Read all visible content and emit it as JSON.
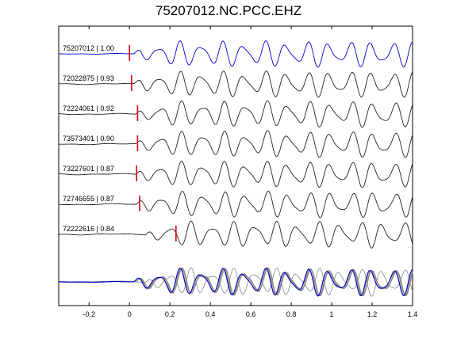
{
  "chart_data": {
    "type": "line",
    "title": "75207012.NC.PCC.EHZ",
    "xlabel": "",
    "ylabel": "",
    "xlim": [
      -0.35,
      1.4
    ],
    "xticks": [
      -0.2,
      0,
      0.2,
      0.4,
      0.6,
      0.8,
      1,
      1.2,
      1.4
    ],
    "xtick_labels": [
      "-0.2",
      "0",
      "0.2",
      "0.4",
      "0.6",
      "0.8",
      "1",
      "1.2",
      "1.4"
    ],
    "grid": false,
    "colors": {
      "master": "#0000cc",
      "trace": "#222222",
      "stack": "#888888",
      "pick": "#dd0000"
    },
    "traces": [
      {
        "label": "75207012 | 1.00",
        "id": "75207012",
        "cc": 1.0,
        "pick": 0.0,
        "master": true
      },
      {
        "label": "72022875 | 0.93",
        "id": "72022875",
        "cc": 0.93,
        "pick": 0.01,
        "master": false
      },
      {
        "label": "72224061 | 0.92",
        "id": "72224061",
        "cc": 0.92,
        "pick": 0.04,
        "master": false
      },
      {
        "label": "73573401 | 0.90",
        "id": "73573401",
        "cc": 0.9,
        "pick": 0.04,
        "master": false
      },
      {
        "label": "73227601 | 0.87",
        "id": "73227601",
        "cc": 0.87,
        "pick": 0.035,
        "master": false
      },
      {
        "label": "72746655 | 0.87",
        "id": "72746655",
        "cc": 0.87,
        "pick": 0.05,
        "master": false
      },
      {
        "label": "72222616 | 0.84",
        "id": "72222616",
        "cc": 0.84,
        "pick": 0.23,
        "master": false
      }
    ]
  }
}
